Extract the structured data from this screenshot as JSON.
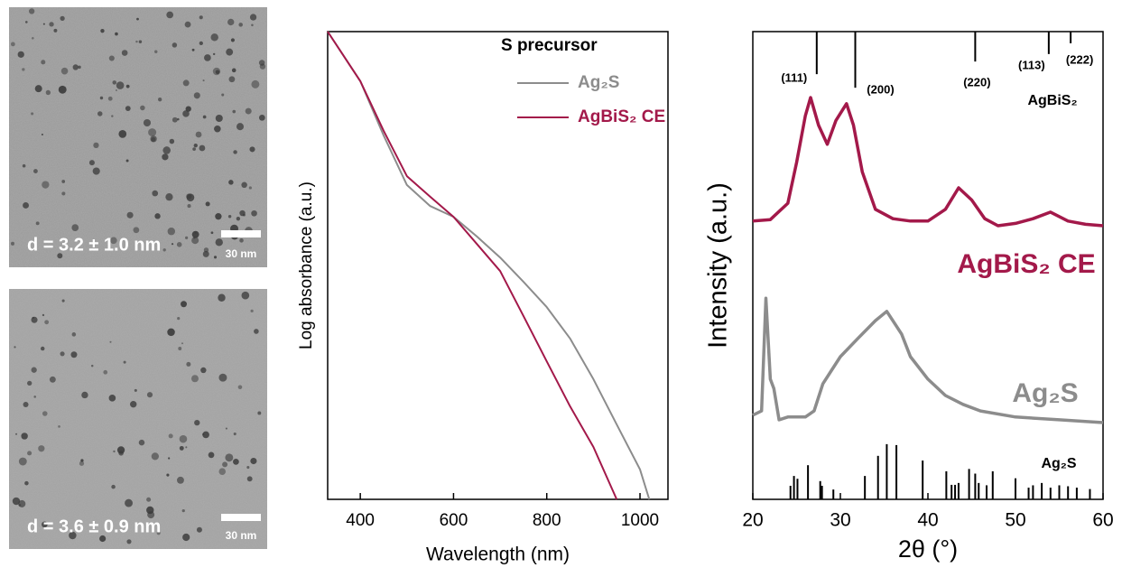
{
  "images": [
    {
      "caption": "d = 3.2 ± 1.0 nm",
      "scale_bar": "30 nm"
    },
    {
      "caption": "d = 3.6 ± 0.9 nm",
      "scale_bar": "30 nm"
    }
  ],
  "chart_data": [
    {
      "type": "line",
      "xlabel": "Wavelength (nm)",
      "ylabel": "Log absorbance (a.u.)",
      "legend_title": "S precursor",
      "xlim": [
        330,
        1060
      ],
      "xticks": [
        400,
        600,
        800,
        1000
      ],
      "ylim": [
        0,
        1
      ],
      "series": [
        {
          "name": "Ag₂S",
          "color": "#8c8c8c",
          "x": [
            330,
            400,
            450,
            500,
            550,
            600,
            650,
            700,
            750,
            800,
            850,
            900,
            950,
            1000,
            1020
          ],
          "values": [
            1.0,
            0.894,
            0.778,
            0.672,
            0.627,
            0.604,
            0.562,
            0.517,
            0.465,
            0.411,
            0.344,
            0.257,
            0.16,
            0.064,
            0.0
          ]
        },
        {
          "name": "AgBiS₂ CE",
          "color": "#a3194a",
          "x": [
            330,
            400,
            450,
            500,
            550,
            600,
            650,
            700,
            750,
            800,
            850,
            900,
            950,
            1000,
            1020
          ],
          "values": [
            1.0,
            0.894,
            0.788,
            0.691,
            0.647,
            0.604,
            0.546,
            0.488,
            0.392,
            0.295,
            0.199,
            0.112,
            0.0,
            null,
            null
          ]
        }
      ]
    },
    {
      "type": "line",
      "xlabel": "2θ (°)",
      "ylabel": "Intensity (a.u.)",
      "xlim": [
        20,
        60
      ],
      "xticks": [
        20,
        30,
        40,
        50,
        60
      ],
      "ylim": [
        0,
        100
      ],
      "series": [
        {
          "name": "AgBiS₂ CE",
          "color": "#a3194a",
          "x": [
            20,
            22,
            24,
            25,
            26,
            26.6,
            27.5,
            28.5,
            29.5,
            30.7,
            31.5,
            32.5,
            34,
            36,
            38,
            40,
            42,
            43.5,
            45,
            46.5,
            48,
            50,
            52,
            54,
            56,
            58,
            60
          ],
          "values": [
            59.5,
            59.8,
            63.3,
            72,
            82,
            85.9,
            80,
            75.9,
            81,
            84.6,
            80,
            70,
            62,
            60,
            59.5,
            59.5,
            62,
            66.6,
            64,
            60,
            58.5,
            59,
            60,
            61.4,
            59.5,
            58.8,
            58.5
          ]
        },
        {
          "name": "Ag₂S",
          "color": "#8c8c8c",
          "x": [
            20,
            21,
            21.5,
            22,
            22.4,
            23,
            24,
            26,
            27,
            28,
            29,
            30,
            32,
            34,
            35.3,
            37,
            38,
            40,
            42,
            44,
            46,
            50,
            55,
            60
          ],
          "values": [
            18,
            18.9,
            43,
            25.7,
            23.7,
            17,
            17.6,
            17.6,
            18.9,
            24.7,
            27.6,
            30.5,
            34.4,
            38.2,
            40.2,
            35.3,
            30.5,
            25.7,
            22.2,
            20.3,
            18.9,
            17.6,
            17,
            16.4
          ]
        }
      ],
      "sticks": [
        {
          "name": "AgBiS₂",
          "color": "#000000",
          "x": [
            27.3,
            31.7,
            45.4,
            53.8,
            56.3
          ],
          "values": [
            9.1,
            12,
            6.4,
            4.8,
            2.5
          ],
          "labels": [
            "(111)",
            "(200)",
            "(220)",
            "(113)",
            "(222)"
          ]
        },
        {
          "name": "Ag₂S",
          "color": "#000000",
          "x": [
            24.3,
            24.7,
            25.1,
            26.3,
            27.7,
            27.9,
            29.2,
            32.8,
            34.3,
            35.3,
            36.4,
            39.4,
            42.1,
            42.7,
            43.1,
            43.5,
            44.7,
            45.4,
            45.8,
            46.7,
            47.4,
            50,
            51.5,
            52,
            53,
            54,
            55,
            56,
            57,
            58.5
          ],
          "values": [
            2.9,
            5,
            4.4,
            7.3,
            3.9,
            2.9,
            2.1,
            5,
            9.3,
            11.8,
            11.6,
            8.3,
            6,
            3.1,
            3.1,
            3.5,
            6.5,
            5.5,
            3.5,
            3,
            6,
            4.5,
            2.5,
            3,
            3.5,
            2.5,
            3,
            2.8,
            2.5,
            2.2
          ]
        }
      ]
    }
  ]
}
